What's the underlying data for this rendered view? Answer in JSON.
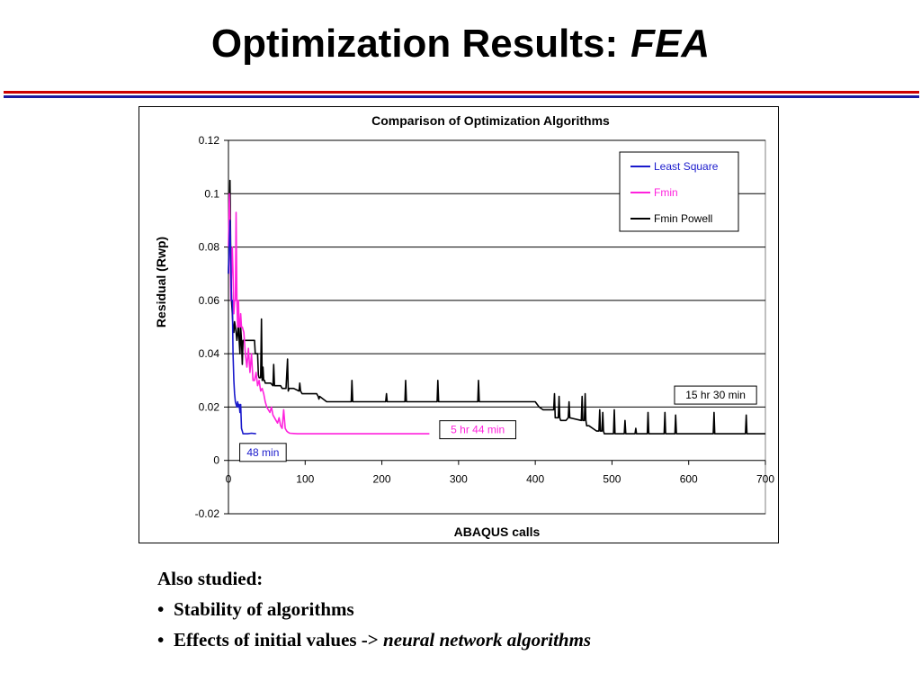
{
  "slide": {
    "title_main": "Optimization Results:",
    "title_italic": "FEA"
  },
  "notes": {
    "heading": "Also studied:",
    "bullets": [
      {
        "text": "Stability of algorithms",
        "italic_suffix": ""
      },
      {
        "text": "Effects of initial values ->",
        "italic_suffix": "neural network algorithms"
      }
    ]
  },
  "colors": {
    "least_square": "#1a1acc",
    "fmin": "#ff22dd",
    "fmin_powell": "#000000"
  },
  "chart_data": {
    "type": "line",
    "title": "Comparison of Optimization Algorithms",
    "xlabel": "ABAQUS calls",
    "ylabel": "Residual (Rwp)",
    "xlim": [
      0,
      700
    ],
    "ylim": [
      -0.02,
      0.12
    ],
    "xticks": [
      "0",
      "100",
      "200",
      "300",
      "400",
      "500",
      "600",
      "700"
    ],
    "yticks": [
      "-0.02",
      "0",
      "0.02",
      "0.04",
      "0.06",
      "0.08",
      "0.1",
      "0.12"
    ],
    "grid": "horizontal",
    "legend_position": "top-right",
    "series": [
      {
        "name": "Least Square",
        "x": [
          0,
          2,
          3,
          4,
          5,
          6,
          7,
          8,
          9,
          10,
          11,
          12,
          13,
          14,
          15,
          16,
          17,
          18,
          19,
          20,
          25,
          30,
          36
        ],
        "y": [
          0.07,
          0.09,
          0.075,
          0.06,
          0.06,
          0.04,
          0.03,
          0.025,
          0.022,
          0.021,
          0.02,
          0.022,
          0.02,
          0.021,
          0.018,
          0.021,
          0.012,
          0.011,
          0.01,
          0.01,
          0.01,
          0.0102,
          0.01
        ]
      },
      {
        "name": "Fmin",
        "x": [
          0,
          1,
          2,
          3,
          4,
          5,
          6,
          7,
          8,
          9,
          10,
          11,
          12,
          13,
          14,
          15,
          16,
          17,
          18,
          20,
          22,
          24,
          26,
          28,
          30,
          32,
          34,
          36,
          38,
          40,
          42,
          44,
          46,
          48,
          50,
          52,
          54,
          56,
          58,
          60,
          62,
          64,
          66,
          68,
          70,
          72,
          74,
          76,
          78,
          80,
          85,
          90,
          100,
          120,
          150,
          200,
          262
        ],
        "y": [
          0.08,
          0.1,
          0.09,
          0.06,
          0.07,
          0.08,
          0.07,
          0.055,
          0.06,
          0.06,
          0.093,
          0.06,
          0.05,
          0.06,
          0.05,
          0.05,
          0.055,
          0.05,
          0.05,
          0.048,
          0.04,
          0.035,
          0.042,
          0.033,
          0.04,
          0.03,
          0.03,
          0.033,
          0.028,
          0.03,
          0.026,
          0.027,
          0.025,
          0.022,
          0.02,
          0.019,
          0.018,
          0.02,
          0.017,
          0.016,
          0.015,
          0.014,
          0.016,
          0.013,
          0.012,
          0.019,
          0.012,
          0.011,
          0.0105,
          0.0102,
          0.0101,
          0.01,
          0.01,
          0.01,
          0.01,
          0.01,
          0.01
        ]
      },
      {
        "name": "Fmin Powell",
        "x": [
          0,
          2,
          3,
          4,
          5,
          6,
          7,
          8,
          9,
          10,
          11,
          12,
          13,
          14,
          15,
          16,
          17,
          18,
          19,
          20,
          22,
          24,
          30,
          34,
          35,
          38,
          39,
          40,
          42,
          43,
          44,
          45,
          46,
          47,
          48,
          55,
          58,
          59,
          60,
          64,
          67,
          68,
          70,
          72,
          75,
          77,
          78,
          79,
          85,
          92,
          93,
          94,
          96,
          97,
          98,
          115,
          117,
          118,
          119,
          128,
          130,
          160,
          161,
          162,
          164,
          205,
          206,
          207,
          230,
          231,
          232,
          234,
          272,
          273,
          274,
          276,
          325,
          326,
          327,
          329,
          400,
          405,
          410,
          415,
          422,
          424,
          425,
          426,
          430,
          431,
          432,
          433,
          435,
          436,
          440,
          443,
          444,
          445,
          460,
          461,
          462,
          464,
          465,
          466,
          467,
          468,
          470,
          480,
          483,
          484,
          485,
          487,
          488,
          489,
          490,
          502,
          503,
          504,
          506,
          508,
          516,
          517,
          518,
          522,
          530,
          531,
          532,
          535,
          546,
          547,
          548,
          552,
          568,
          569,
          570,
          574,
          582,
          583,
          584,
          590,
          600,
          620,
          632,
          633,
          634,
          640,
          660,
          674,
          675,
          676,
          680,
          700
        ],
        "y": [
          0.07,
          0.105,
          0.075,
          0.06,
          0.055,
          0.05,
          0.048,
          0.052,
          0.05,
          0.048,
          0.045,
          0.047,
          0.055,
          0.045,
          0.04,
          0.05,
          0.045,
          0.036,
          0.045,
          0.045,
          0.045,
          0.045,
          0.045,
          0.045,
          0.04,
          0.04,
          0.032,
          0.031,
          0.031,
          0.053,
          0.03,
          0.035,
          0.03,
          0.03,
          0.029,
          0.029,
          0.028,
          0.036,
          0.028,
          0.028,
          0.028,
          0.028,
          0.027,
          0.027,
          0.027,
          0.038,
          0.026,
          0.027,
          0.027,
          0.026,
          0.029,
          0.026,
          0.025,
          0.025,
          0.025,
          0.025,
          0.024,
          0.023,
          0.024,
          0.022,
          0.022,
          0.022,
          0.03,
          0.022,
          0.022,
          0.022,
          0.025,
          0.022,
          0.022,
          0.03,
          0.022,
          0.022,
          0.022,
          0.03,
          0.022,
          0.022,
          0.022,
          0.03,
          0.022,
          0.022,
          0.022,
          0.02,
          0.019,
          0.019,
          0.019,
          0.019,
          0.025,
          0.016,
          0.016,
          0.024,
          0.016,
          0.015,
          0.015,
          0.015,
          0.015,
          0.016,
          0.022,
          0.016,
          0.015,
          0.024,
          0.015,
          0.015,
          0.025,
          0.015,
          0.013,
          0.013,
          0.013,
          0.011,
          0.011,
          0.019,
          0.011,
          0.011,
          0.018,
          0.011,
          0.01,
          0.01,
          0.019,
          0.01,
          0.01,
          0.01,
          0.01,
          0.015,
          0.01,
          0.01,
          0.01,
          0.012,
          0.01,
          0.01,
          0.01,
          0.018,
          0.01,
          0.01,
          0.01,
          0.018,
          0.01,
          0.01,
          0.01,
          0.017,
          0.01,
          0.01,
          0.01,
          0.01,
          0.01,
          0.018,
          0.01,
          0.01,
          0.01,
          0.01,
          0.017,
          0.01,
          0.01,
          0.01
        ]
      }
    ],
    "annotations": [
      {
        "text": "48 min",
        "series": "Least Square",
        "x": 45,
        "y": 0.003
      },
      {
        "text": "5 hr 44 min",
        "series": "Fmin",
        "x": 325,
        "y": 0.0115
      },
      {
        "text": "15 hr 30 min",
        "series": "Fmin Powell",
        "x": 635,
        "y": 0.0245
      }
    ]
  }
}
